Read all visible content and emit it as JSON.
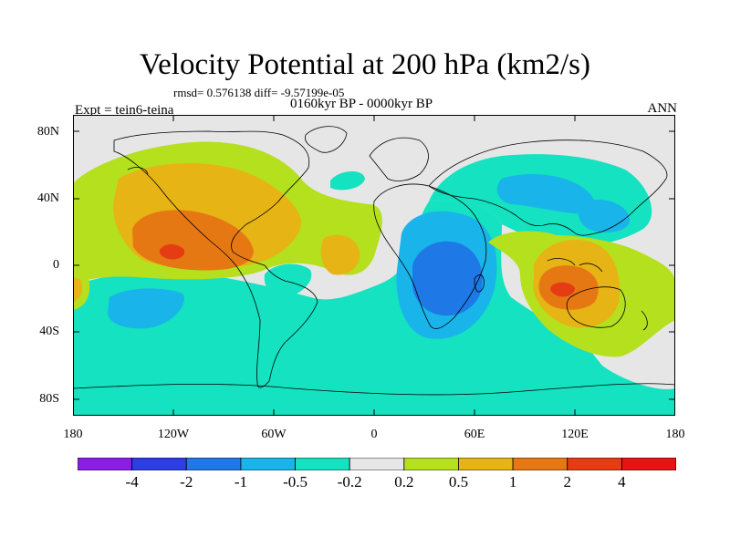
{
  "figure": {
    "title": "Velocity Potential at 200 hPa (km2/s)",
    "stats_line": "rmsd= 0.576138 diff= -9.57199e-05",
    "period_line": "0160kyr BP - 0000kyr BP",
    "left_label": "Expt = tein6-teina",
    "right_label": "ANN"
  },
  "axes": {
    "lat_ticks": [
      "80N",
      "40N",
      "0",
      "40S",
      "80S"
    ],
    "lon_ticks": [
      "180",
      "120W",
      "60W",
      "0",
      "60E",
      "120E",
      "180"
    ]
  },
  "colorbar": {
    "levels": [
      "-4",
      "-2",
      "-1",
      "-0.5",
      "-0.2",
      "0.2",
      "0.5",
      "1",
      "2",
      "4"
    ],
    "colors": [
      "#8b1ee6",
      "#2d3ee6",
      "#1e78e6",
      "#19b4ea",
      "#14e2c0",
      "#e6e6e6",
      "#b4e01e",
      "#e6b414",
      "#e67814",
      "#e63c14",
      "#e61414"
    ]
  }
}
